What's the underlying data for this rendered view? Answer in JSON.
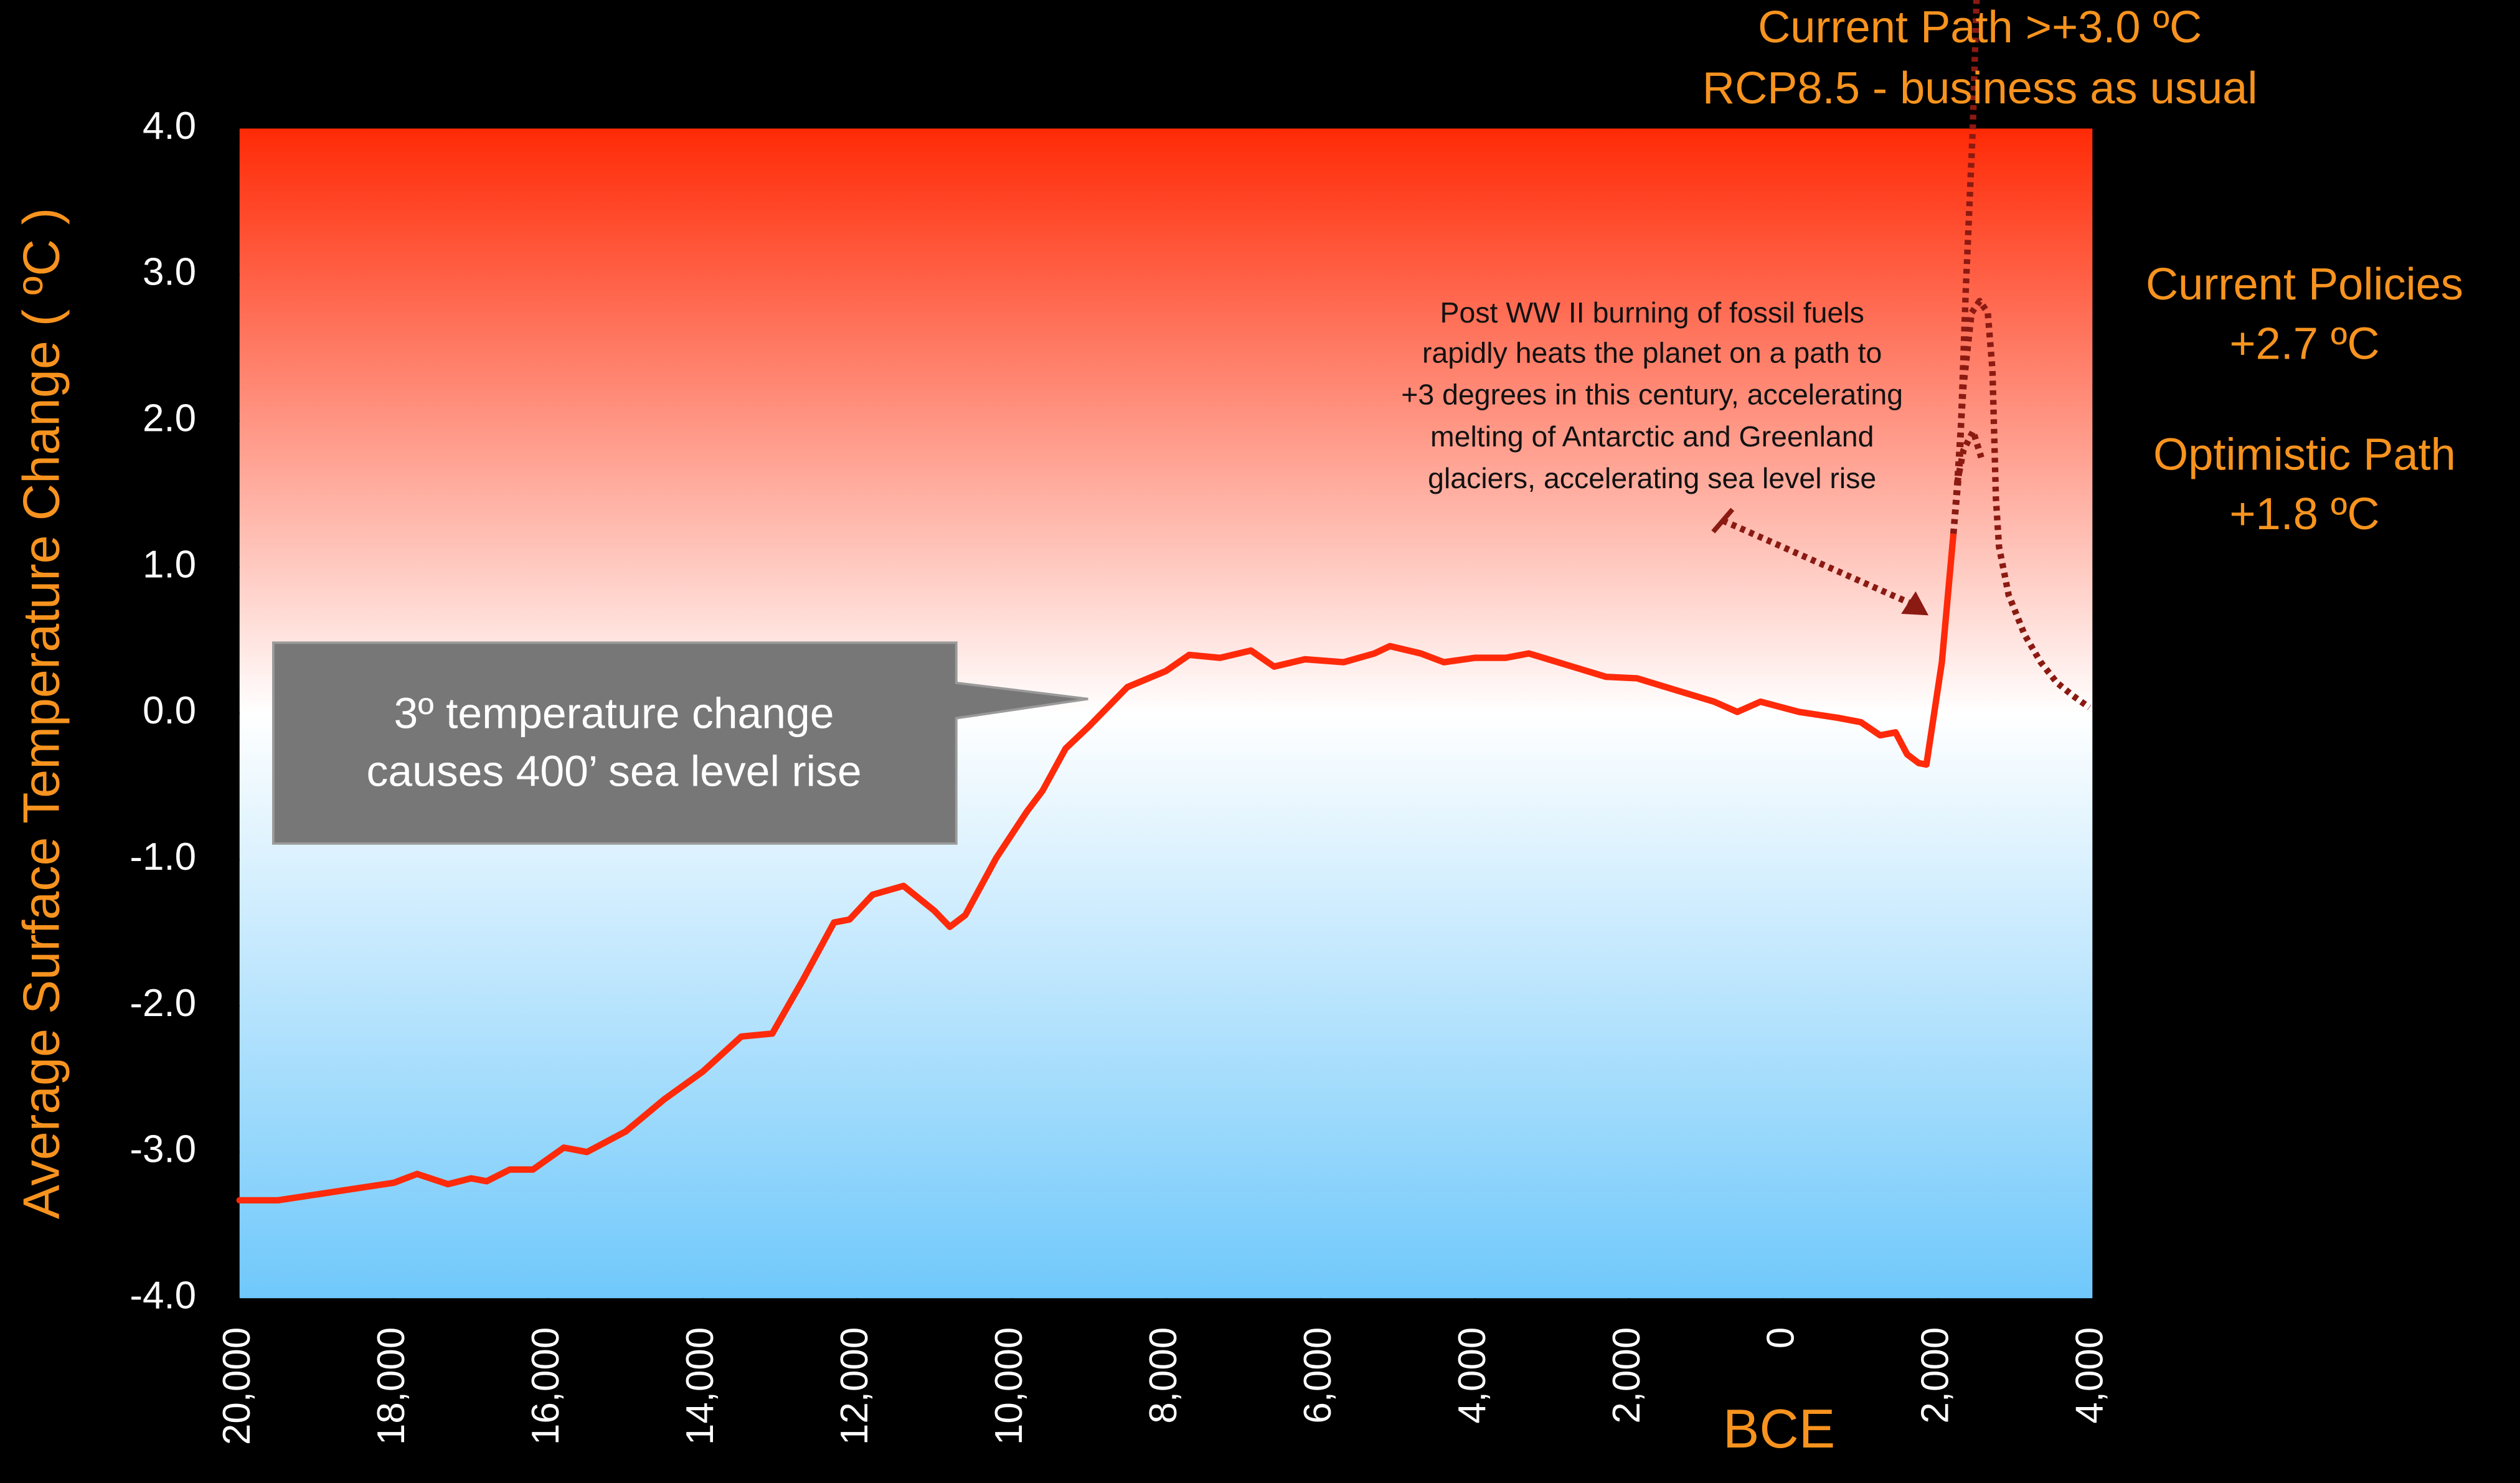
{
  "chart_data": {
    "type": "line",
    "y_label": "Average Surface Temperature Change ( ºC )",
    "x_label": "BCE",
    "xlim": [
      -20000,
      4000
    ],
    "ylim": [
      -4,
      4
    ],
    "xticks": [
      {
        "value": -20000,
        "label": "20,000"
      },
      {
        "value": -18000,
        "label": "18,000"
      },
      {
        "value": -16000,
        "label": "16,000"
      },
      {
        "value": -14000,
        "label": "14,000"
      },
      {
        "value": -12000,
        "label": "12,000"
      },
      {
        "value": -10000,
        "label": "10,000"
      },
      {
        "value": -8000,
        "label": "8,000"
      },
      {
        "value": -6000,
        "label": "6,000"
      },
      {
        "value": -4000,
        "label": "4,000"
      },
      {
        "value": -2000,
        "label": "2,000"
      },
      0,
      {
        "value": 2000,
        "label": "2,000"
      },
      {
        "value": 4000,
        "label": "4,000"
      }
    ],
    "yticks": [
      {
        "value": 4,
        "label": "4.0"
      },
      {
        "value": 3,
        "label": "3.0"
      },
      {
        "value": 2,
        "label": "2.0"
      },
      {
        "value": 1,
        "label": "1.0"
      },
      {
        "value": 0,
        "label": "0.0"
      },
      {
        "value": -1,
        "label": "-1.0"
      },
      {
        "value": -2,
        "label": "-2.0"
      },
      {
        "value": -3,
        "label": "-3.0"
      },
      {
        "value": -4,
        "label": "-4.0"
      }
    ],
    "series": [
      {
        "color": "#ff2a0a",
        "style": "solid",
        "x": [
          -20000,
          -19500,
          -19000,
          -18500,
          -18000,
          -17700,
          -17300,
          -17000,
          -16800,
          -16500,
          -16200,
          -15800,
          -15500,
          -15000,
          -14500,
          -14000,
          -13500,
          -13100,
          -12700,
          -12300,
          -12100,
          -11800,
          -11400,
          -11000,
          -10800,
          -10600,
          -10200,
          -9800,
          -9600,
          -9300,
          -9000,
          -8500,
          -8000,
          -7700,
          -7300,
          -6900,
          -6600,
          -6200,
          -5700,
          -5300,
          -5100,
          -4700,
          -4400,
          -4000,
          -3600,
          -3300,
          -2800,
          -2300,
          -1900,
          -1400,
          -900,
          -600,
          -300,
          200,
          700,
          1000,
          1250,
          1450,
          1600,
          1750,
          1850,
          2050,
          2200
        ],
        "values": [
          -3.33,
          -3.33,
          -3.29,
          -3.25,
          -3.21,
          -3.15,
          -3.22,
          -3.18,
          -3.2,
          -3.12,
          -3.12,
          -2.97,
          -3.0,
          -2.86,
          -2.64,
          -2.45,
          -2.21,
          -2.19,
          -1.82,
          -1.43,
          -1.41,
          -1.24,
          -1.18,
          -1.35,
          -1.46,
          -1.38,
          -0.99,
          -0.67,
          -0.53,
          -0.24,
          -0.09,
          0.18,
          0.29,
          0.4,
          0.38,
          0.43,
          0.32,
          0.37,
          0.35,
          0.41,
          0.46,
          0.41,
          0.35,
          0.38,
          0.38,
          0.41,
          0.33,
          0.25,
          0.24,
          0.16,
          0.08,
          0.01,
          0.08,
          0.01,
          -0.03,
          -0.06,
          -0.15,
          -0.13,
          -0.28,
          -0.34,
          -0.35,
          0.35,
          1.23
        ]
      },
      {
        "color": "#8b1a12",
        "style": "dotted",
        "x": [
          2200,
          2280,
          2360,
          2450,
          2500
        ],
        "values": [
          1.23,
          1.7,
          2.9,
          4.0,
          4.9
        ]
      },
      {
        "color": "#8b1a12",
        "style": "dotted",
        "x": [
          2200,
          2250,
          2330,
          2435,
          2540,
          2645,
          2705,
          2750,
          2790,
          2915,
          3120,
          3330,
          3540,
          3750,
          3960
        ],
        "values": [
          1.23,
          1.58,
          2.24,
          2.74,
          2.82,
          2.74,
          2.35,
          1.47,
          1.14,
          0.81,
          0.54,
          0.35,
          0.21,
          0.12,
          0.04
        ]
      },
      {
        "color": "#8b1a12",
        "style": "dotted",
        "x": [
          2250,
          2330,
          2455,
          2560
        ],
        "values": [
          1.58,
          1.8,
          1.93,
          1.75
        ]
      }
    ],
    "annotations": {
      "current_path": [
        "Current Path >+3.0 ºC",
        "RCP8.5 - business as usual"
      ],
      "current_policies": [
        "Current Policies",
        "+2.7 ºC"
      ],
      "optimistic_path": [
        "Optimistic Path",
        "+1.8 ºC"
      ],
      "post_ww2": [
        "Post WW II burning of fossil fuels",
        "rapidly heats the planet on a path to",
        "+3 degrees in this century, accelerating",
        "melting of Antarctic and Greenland",
        "glaciers, accelerating sea level rise"
      ],
      "callout": [
        "3º temperature change",
        "causes 400’ sea level rise"
      ]
    }
  }
}
